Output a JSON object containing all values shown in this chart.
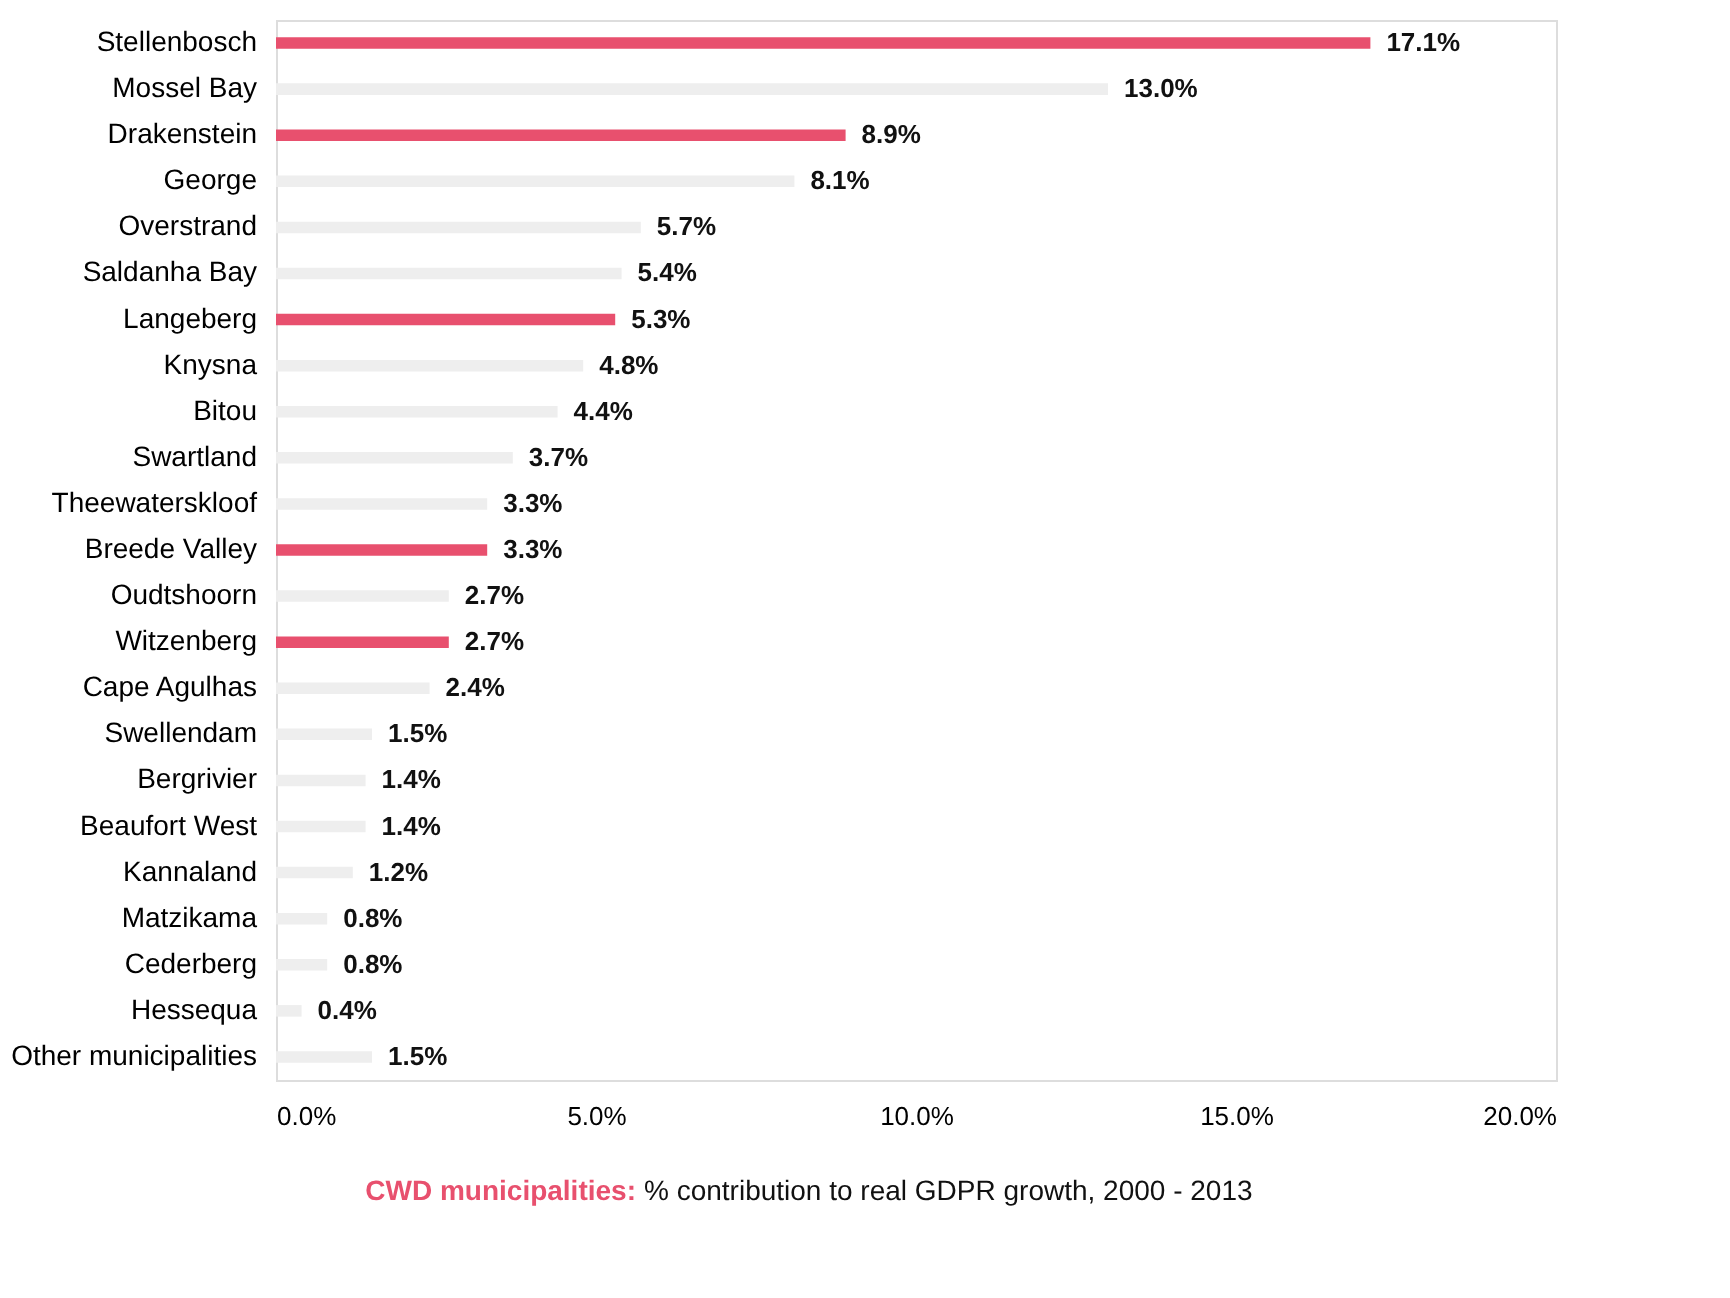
{
  "chart_data": {
    "type": "bar",
    "orientation": "horizontal",
    "categories": [
      "Stellenbosch",
      "Mossel Bay",
      "Drakenstein",
      "George",
      "Overstrand",
      "Saldanha Bay",
      "Langeberg",
      "Knysna",
      "Bitou",
      "Swartland",
      "Theewaterskloof",
      "Breede Valley",
      "Oudtshoorn",
      "Witzenberg",
      "Cape Agulhas",
      "Swellendam",
      "Bergrivier",
      "Beaufort West",
      "Kannaland",
      "Matzikama",
      "Cederberg",
      "Hessequa",
      "Other municipalities"
    ],
    "values": [
      17.1,
      13.0,
      8.9,
      8.1,
      5.7,
      5.4,
      5.3,
      4.8,
      4.4,
      3.7,
      3.3,
      3.3,
      2.7,
      2.7,
      2.4,
      1.5,
      1.4,
      1.4,
      1.2,
      0.8,
      0.8,
      0.4,
      1.5
    ],
    "value_labels": [
      "17.1%",
      "13.0%",
      "8.9%",
      "8.1%",
      "5.7%",
      "5.4%",
      "5.3%",
      "4.8%",
      "4.4%",
      "3.7%",
      "3.3%",
      "3.3%",
      "2.7%",
      "2.7%",
      "2.4%",
      "1.5%",
      "1.4%",
      "1.4%",
      "1.2%",
      "0.8%",
      "0.8%",
      "0.4%",
      "1.5%"
    ],
    "colors": [
      "#e8506e",
      "#eeeeee",
      "#e8506e",
      "#eeeeee",
      "#eeeeee",
      "#eeeeee",
      "#e8506e",
      "#eeeeee",
      "#eeeeee",
      "#eeeeee",
      "#eeeeee",
      "#e8506e",
      "#eeeeee",
      "#e8506e",
      "#eeeeee",
      "#eeeeee",
      "#eeeeee",
      "#eeeeee",
      "#eeeeee",
      "#eeeeee",
      "#eeeeee",
      "#eeeeee",
      "#eeeeee"
    ],
    "xlim": [
      0,
      20
    ],
    "xticks": [
      {
        "value": 0,
        "label": "0.0%"
      },
      {
        "value": 5,
        "label": "5.0%"
      },
      {
        "value": 10,
        "label": "10.0%"
      },
      {
        "value": 15,
        "label": "15.0%"
      },
      {
        "value": 20,
        "label": "20.0%"
      }
    ],
    "grid": false,
    "annotations": [
      "CWD municipalities:",
      "% contribution to real GDPR growth, 2000 - 2013"
    ]
  }
}
